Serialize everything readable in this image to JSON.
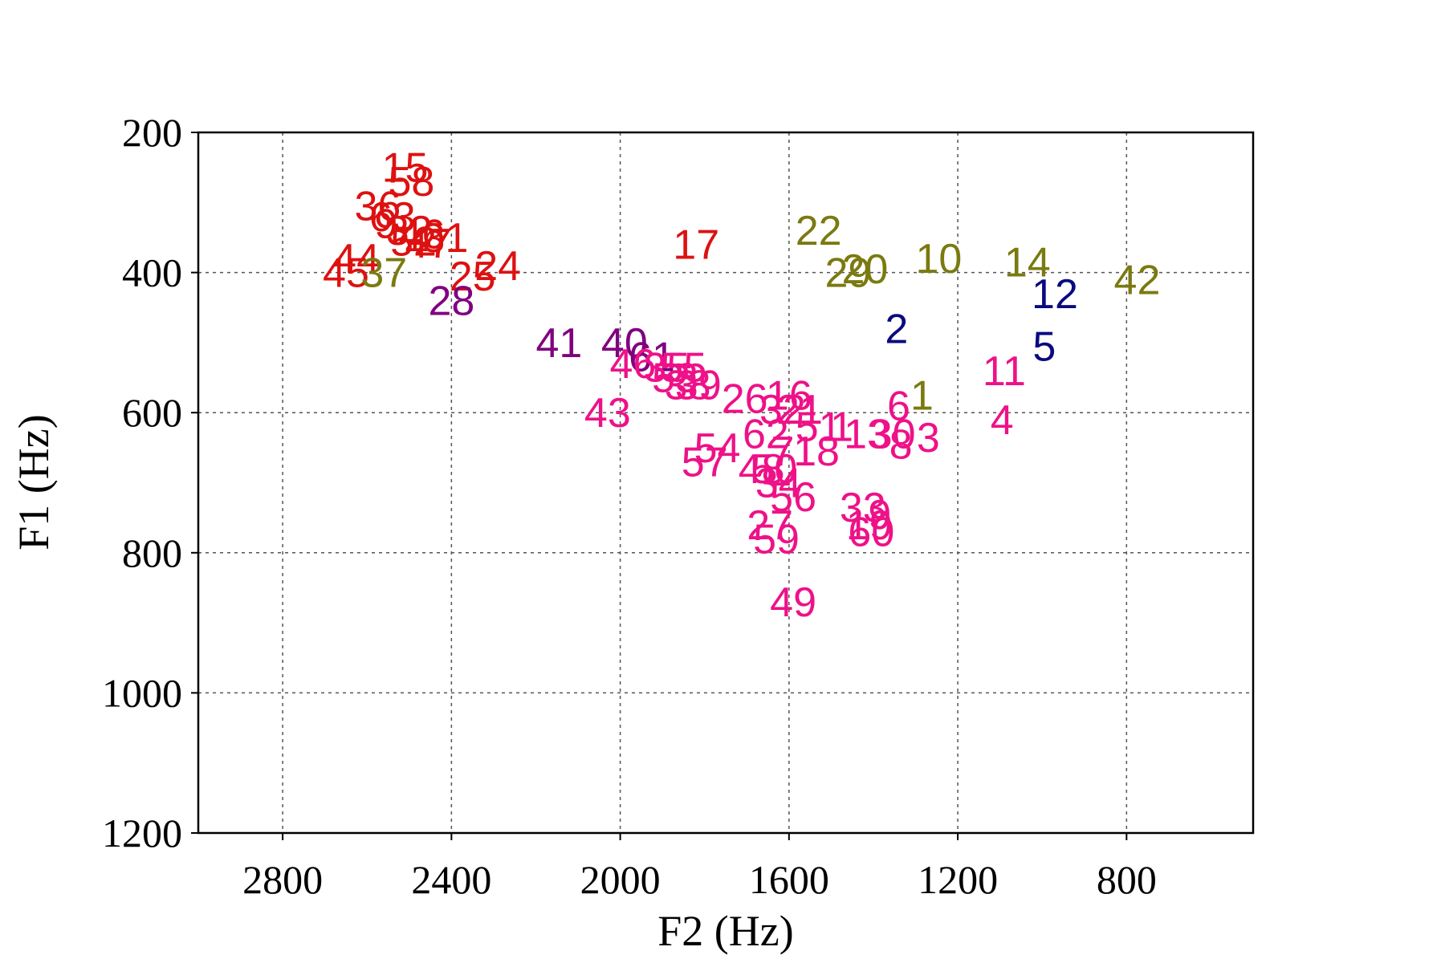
{
  "chart_data": {
    "type": "scatter",
    "title": "",
    "xlabel": "F2 (Hz)",
    "ylabel": "F1 (Hz)",
    "xlim": [
      3000,
      500
    ],
    "ylim": [
      1200,
      200
    ],
    "x_reversed": true,
    "y_reversed": true,
    "xticks": [
      2800,
      2400,
      2000,
      1600,
      1200,
      800
    ],
    "yticks": [
      200,
      400,
      600,
      800,
      1000,
      1200
    ],
    "grid": true,
    "series": [
      {
        "color": "#dd1111",
        "points": [
          {
            "label": "15",
            "x": 2510,
            "y": 250
          },
          {
            "label": "58",
            "x": 2495,
            "y": 270
          },
          {
            "label": "36",
            "x": 2575,
            "y": 305
          },
          {
            "label": "63",
            "x": 2540,
            "y": 320
          },
          {
            "label": "9",
            "x": 2555,
            "y": 330
          },
          {
            "label": "32",
            "x": 2500,
            "y": 340
          },
          {
            "label": "52",
            "x": 2490,
            "y": 355
          },
          {
            "label": "46",
            "x": 2470,
            "y": 345
          },
          {
            "label": "47",
            "x": 2455,
            "y": 358
          },
          {
            "label": "31",
            "x": 2415,
            "y": 350
          },
          {
            "label": "17",
            "x": 1820,
            "y": 360
          },
          {
            "label": "44",
            "x": 2625,
            "y": 380
          },
          {
            "label": "45",
            "x": 2650,
            "y": 400
          },
          {
            "label": "24",
            "x": 2290,
            "y": 390
          },
          {
            "label": "25",
            "x": 2350,
            "y": 405
          }
        ]
      },
      {
        "color": "#7a7a10",
        "points": [
          {
            "label": "22",
            "x": 1530,
            "y": 340
          },
          {
            "label": "37",
            "x": 2560,
            "y": 400
          },
          {
            "label": "29",
            "x": 1460,
            "y": 400
          },
          {
            "label": "20",
            "x": 1420,
            "y": 395
          },
          {
            "label": "10",
            "x": 1245,
            "y": 380
          },
          {
            "label": "14",
            "x": 1035,
            "y": 385
          },
          {
            "label": "42",
            "x": 775,
            "y": 410
          },
          {
            "label": "1",
            "x": 1285,
            "y": 575
          }
        ]
      },
      {
        "color": "#800080",
        "points": [
          {
            "label": "28",
            "x": 2400,
            "y": 440
          },
          {
            "label": "41",
            "x": 2145,
            "y": 500
          },
          {
            "label": "40",
            "x": 1990,
            "y": 500
          },
          {
            "label": "61",
            "x": 1925,
            "y": 520
          }
        ]
      },
      {
        "color": "#0a0a80",
        "points": [
          {
            "label": "2",
            "x": 1345,
            "y": 480
          },
          {
            "label": "12",
            "x": 970,
            "y": 430
          },
          {
            "label": "5",
            "x": 995,
            "y": 505
          }
        ]
      },
      {
        "color": "#ee1188",
        "points": [
          {
            "label": "46",
            "x": 1970,
            "y": 530
          },
          {
            "label": "35",
            "x": 1890,
            "y": 535
          },
          {
            "label": "55",
            "x": 1850,
            "y": 535
          },
          {
            "label": "53",
            "x": 1870,
            "y": 550
          },
          {
            "label": "38",
            "x": 1840,
            "y": 560
          },
          {
            "label": "39",
            "x": 1815,
            "y": 560
          },
          {
            "label": "11",
            "x": 1090,
            "y": 540
          },
          {
            "label": "26",
            "x": 1705,
            "y": 580
          },
          {
            "label": "16",
            "x": 1600,
            "y": 575
          },
          {
            "label": "32",
            "x": 1615,
            "y": 595
          },
          {
            "label": "21",
            "x": 1575,
            "y": 595
          },
          {
            "label": "6",
            "x": 1340,
            "y": 590
          },
          {
            "label": "43",
            "x": 2030,
            "y": 600
          },
          {
            "label": "4",
            "x": 1095,
            "y": 610
          },
          {
            "label": "51",
            "x": 1530,
            "y": 620
          },
          {
            "label": "1",
            "x": 1475,
            "y": 620
          },
          {
            "label": "13",
            "x": 1415,
            "y": 630
          },
          {
            "label": "30",
            "x": 1355,
            "y": 630
          },
          {
            "label": "3",
            "x": 1270,
            "y": 635
          },
          {
            "label": "8",
            "x": 1335,
            "y": 645
          },
          {
            "label": "62",
            "x": 1655,
            "y": 630
          },
          {
            "label": "54",
            "x": 1770,
            "y": 650
          },
          {
            "label": "57",
            "x": 1800,
            "y": 670
          },
          {
            "label": "7",
            "x": 1615,
            "y": 655
          },
          {
            "label": "18",
            "x": 1535,
            "y": 655
          },
          {
            "label": "48",
            "x": 1665,
            "y": 680
          },
          {
            "label": "50",
            "x": 1635,
            "y": 680
          },
          {
            "label": "34",
            "x": 1625,
            "y": 700
          },
          {
            "label": "56",
            "x": 1590,
            "y": 720
          },
          {
            "label": "33",
            "x": 1425,
            "y": 735
          },
          {
            "label": "9",
            "x": 1385,
            "y": 745
          },
          {
            "label": "19",
            "x": 1410,
            "y": 760
          },
          {
            "label": "60",
            "x": 1405,
            "y": 770
          },
          {
            "label": "27",
            "x": 1645,
            "y": 760
          },
          {
            "label": "59",
            "x": 1630,
            "y": 780
          },
          {
            "label": "49",
            "x": 1590,
            "y": 870
          }
        ]
      }
    ]
  }
}
